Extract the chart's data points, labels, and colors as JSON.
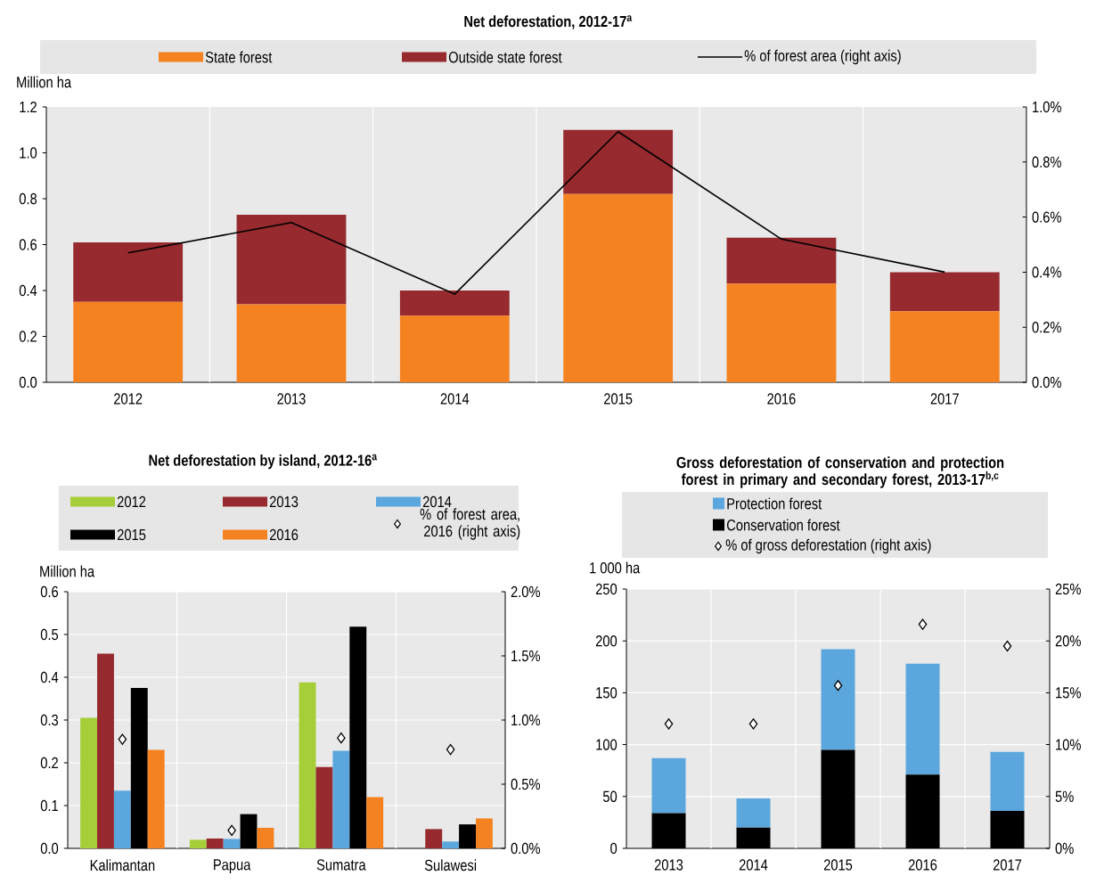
{
  "chart_data": [
    {
      "type": "bar",
      "title": "Net deforestation, 2012-17$^{a}$",
      "ylabel": "Million ha",
      "categories": [
        "2012",
        "2013",
        "2014",
        "2015",
        "2016",
        "2017"
      ],
      "stacked": true,
      "legend": "top",
      "grid": "x",
      "ylim": [
        0,
        1.2
      ],
      "yticks": [
        {
          "value": 0,
          "label": "0.0"
        },
        {
          "value": 0.2,
          "label": "0.2"
        },
        {
          "value": 0.4,
          "label": "0.4"
        },
        {
          "value": 0.6,
          "label": "0.6"
        },
        {
          "value": 0.8,
          "label": "0.8"
        },
        {
          "value": 1.0,
          "label": "1.0"
        },
        {
          "value": 1.2,
          "label": "1.2"
        }
      ],
      "y2lim": [
        0,
        1
      ],
      "y2ticks": [
        {
          "value": 0,
          "label": "0.0%"
        },
        {
          "value": 0.2,
          "label": "0.2%"
        },
        {
          "value": 0.4,
          "label": "0.4%"
        },
        {
          "value": 0.6,
          "label": "0.6%"
        },
        {
          "value": 0.8,
          "label": "0.8%"
        },
        {
          "value": 1.0,
          "label": "1.0%"
        }
      ],
      "series": [
        {
          "name": "State forest",
          "color": "#f58220",
          "values": [
            0.35,
            0.34,
            0.29,
            0.82,
            0.43,
            0.31
          ]
        },
        {
          "name": "Outside state forest",
          "color": "#962a2f",
          "values": [
            0.26,
            0.39,
            0.11,
            0.28,
            0.2,
            0.17
          ]
        },
        {
          "name": "% of forest area (right axis)",
          "type": "line",
          "axis": "y2",
          "color": "#000000",
          "values": [
            0.47,
            0.58,
            0.32,
            0.91,
            0.52,
            0.4
          ]
        }
      ]
    },
    {
      "type": "bar",
      "title": "Net deforestation by island, 2012-16$^{a}$",
      "ylabel": "Million ha",
      "categories": [
        "Kalimantan",
        "Papua",
        "Sumatra",
        "Sulawesi"
      ],
      "legend": "top",
      "grid": true,
      "marker": "diamond",
      "ylim": [
        0,
        0.6
      ],
      "yticks": [
        {
          "value": 0,
          "label": "0.0"
        },
        {
          "value": 0.1,
          "label": "0.1"
        },
        {
          "value": 0.2,
          "label": "0.2"
        },
        {
          "value": 0.3,
          "label": "0.3"
        },
        {
          "value": 0.4,
          "label": "0.4"
        },
        {
          "value": 0.5,
          "label": "0.5"
        },
        {
          "value": 0.6,
          "label": "0.6"
        }
      ],
      "y2lim": [
        0,
        2
      ],
      "y2ticks": [
        {
          "value": 0,
          "label": "0.0%"
        },
        {
          "value": 0.5,
          "label": "0.5%"
        },
        {
          "value": 1.0,
          "label": "1.0%"
        },
        {
          "value": 1.5,
          "label": "1.5%"
        },
        {
          "value": 2.0,
          "label": "2.0%"
        }
      ],
      "series": [
        {
          "name": "2012",
          "color": "#a6ce39",
          "values": [
            0.305,
            0.02,
            0.388,
            null
          ]
        },
        {
          "name": "2013",
          "color": "#962a2f",
          "values": [
            0.455,
            0.023,
            0.19,
            0.045
          ]
        },
        {
          "name": "2014",
          "color": "#5ba7dd",
          "values": [
            0.135,
            0.022,
            0.228,
            0.016
          ]
        },
        {
          "name": "2015",
          "color": "#000000",
          "values": [
            0.375,
            0.08,
            0.518,
            0.056
          ]
        },
        {
          "name": "2016",
          "color": "#f58220",
          "values": [
            0.23,
            0.048,
            0.12,
            0.07
          ]
        },
        {
          "name": "% of forest area, 2016 (right axis)",
          "type": "scatter",
          "axis": "y2",
          "color": "#000000",
          "values": [
            0.85,
            0.14,
            0.86,
            0.77
          ]
        }
      ]
    },
    {
      "type": "bar",
      "title": "Gross deforestation of conservation and protection forest in primary and secondary forest, 2013-17$^{b,c}$",
      "ylabel": "1 000 ha",
      "categories": [
        "2013",
        "2014",
        "2015",
        "2016",
        "2017"
      ],
      "stacked": true,
      "legend": "top",
      "grid": true,
      "marker": "diamond",
      "ylim": [
        0,
        250
      ],
      "yticks": [
        0,
        50,
        100,
        150,
        200,
        250
      ],
      "y2lim": [
        0,
        25
      ],
      "y2ticks": [
        {
          "value": 0,
          "label": "0%"
        },
        {
          "value": 5,
          "label": "5%"
        },
        {
          "value": 10,
          "label": "10%"
        },
        {
          "value": 15,
          "label": "15%"
        },
        {
          "value": 20,
          "label": "20%"
        },
        {
          "value": 25,
          "label": "25%"
        }
      ],
      "series": [
        {
          "name": "Conservation forest",
          "color": "#000000",
          "values": [
            34,
            20,
            95,
            71,
            36
          ]
        },
        {
          "name": "Protection forest",
          "color": "#5ba7dd",
          "values": [
            53,
            28,
            97,
            107,
            57
          ]
        },
        {
          "name": "% of gross deforestation (right axis)",
          "type": "scatter",
          "axis": "y2",
          "color": "#000000",
          "values": [
            12,
            12,
            15.7,
            21.6,
            19.5
          ]
        }
      ]
    }
  ]
}
